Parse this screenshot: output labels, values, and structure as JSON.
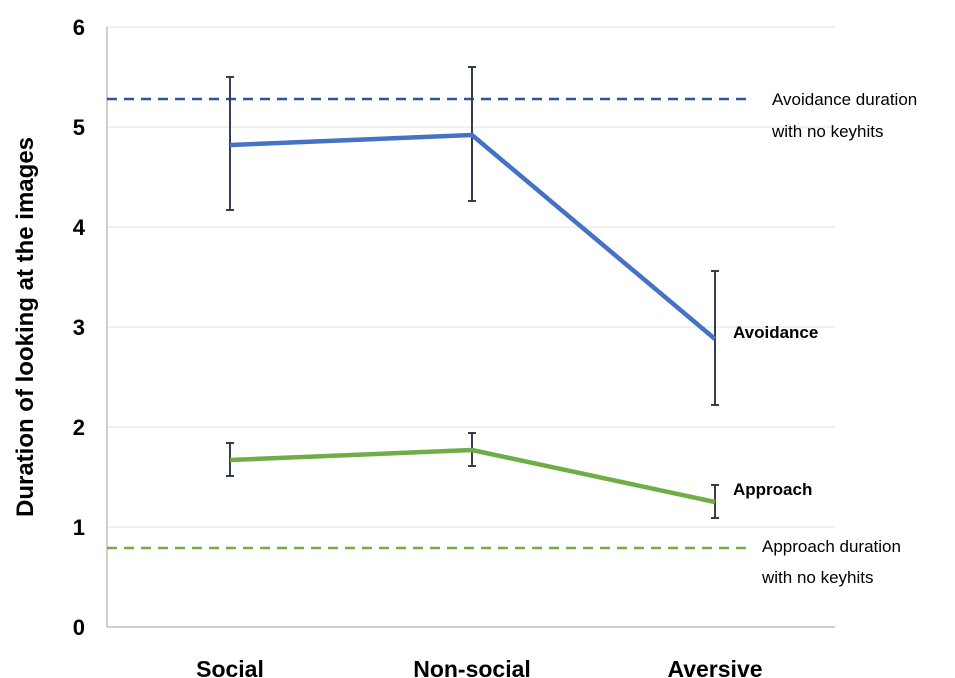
{
  "chart_data": {
    "type": "line",
    "title": "",
    "xlabel": "",
    "ylabel": "Duration of looking at the images",
    "categories": [
      "Social",
      "Non-social",
      "Aversive"
    ],
    "ylim": [
      0,
      6
    ],
    "yticks": [
      0,
      1,
      2,
      3,
      4,
      5,
      6
    ],
    "grid": true,
    "series": [
      {
        "name": "Avoidance",
        "color": "#4472C4",
        "values": [
          4.82,
          4.92,
          2.88
        ],
        "error_low": [
          4.17,
          4.26,
          2.22
        ],
        "error_high": [
          5.5,
          5.6,
          3.56
        ]
      },
      {
        "name": "Approach",
        "color": "#70AD47",
        "values": [
          1.67,
          1.77,
          1.25
        ],
        "error_low": [
          1.51,
          1.61,
          1.09
        ],
        "error_high": [
          1.84,
          1.94,
          1.42
        ]
      }
    ],
    "reference_lines": [
      {
        "value": 5.28,
        "color": "#2F5597",
        "label_line1": "Avoidance duration",
        "label_line2": "with no keyhits"
      },
      {
        "value": 0.79,
        "color": "#70AD47",
        "label_line1": "Approach duration",
        "label_line2": "with no keyhits"
      }
    ]
  }
}
